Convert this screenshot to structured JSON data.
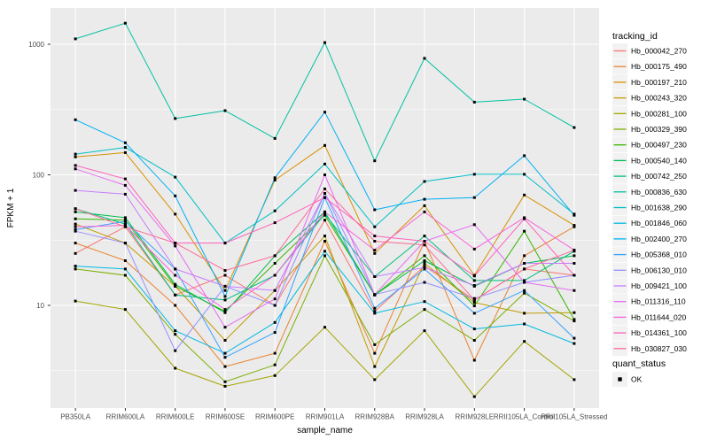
{
  "figure": {
    "y_axis_title": "FPKM + 1",
    "x_axis_title": "sample_name",
    "legend_title": "tracking_id",
    "status_legend_title": "quant_status",
    "status_ok_label": "OK"
  },
  "style": {
    "panel_bg": "#EBEBEB",
    "grid_color": "#FFFFFF",
    "tick_color": "#333333",
    "tick_label_color": "#4D4D4D",
    "text_color": "#000000",
    "marker_color": "#000000",
    "legend_key_bg": "#F2F2F2"
  },
  "chart_data": {
    "type": "line",
    "y_scale": "log10",
    "grid": "on",
    "legend_position": "right",
    "marker": "black-square",
    "x_categories": [
      "PB350LA",
      "RRIM600LA",
      "RRIM600LE",
      "RRIM600SE",
      "RRIM600PE",
      "RRIM901LA",
      "RRIM928BA",
      "RRIM928LA",
      "RRIM928LE",
      "RRII105LA_Control",
      "RRII105LA_Stressed"
    ],
    "y_ticks": [
      10,
      100,
      1000
    ],
    "y_minor_ticks": [
      3.162,
      31.62,
      316.2
    ],
    "ylim_approx": [
      1.7,
      1900
    ],
    "series": [
      {
        "name": "Hb_000042_270",
        "color": "#F8766D",
        "values": [
          25,
          40,
          12,
          17,
          10,
          45,
          9,
          20,
          11,
          19,
          17
        ]
      },
      {
        "name": "Hb_000175_490",
        "color": "#EA8331",
        "values": [
          30,
          22,
          10,
          3.4,
          4.3,
          31,
          4.3,
          31,
          3.8,
          24,
          40
        ]
      },
      {
        "name": "Hb_000197_210",
        "color": "#D89000",
        "values": [
          137,
          148,
          50,
          13,
          91,
          168,
          25,
          58,
          17,
          70,
          41
        ]
      },
      {
        "name": "Hb_000243_320",
        "color": "#C09B00",
        "values": [
          42,
          30,
          14,
          5.4,
          13,
          34,
          3.4,
          21,
          10.5,
          8.7,
          8.8
        ]
      },
      {
        "name": "Hb_000281_100",
        "color": "#A3A500",
        "values": [
          10.8,
          9.3,
          3.3,
          2.4,
          2.9,
          6.8,
          2.7,
          6.4,
          2.0,
          5.3,
          2.7
        ]
      },
      {
        "name": "Hb_000329_390",
        "color": "#7CAE00",
        "values": [
          19,
          17,
          6.0,
          2.6,
          3.5,
          24,
          5.0,
          9.3,
          5.4,
          12.4,
          7.6
        ]
      },
      {
        "name": "Hb_000497_230",
        "color": "#39B600",
        "values": [
          46,
          45,
          14,
          9.0,
          21,
          49,
          12,
          24,
          9.9,
          37,
          7.8
        ]
      },
      {
        "name": "Hb_000540_140",
        "color": "#00BB4E",
        "values": [
          52,
          47,
          14.5,
          8.8,
          24,
          52,
          12,
          22,
          14,
          21,
          24
        ]
      },
      {
        "name": "Hb_000742_250",
        "color": "#00BF7D",
        "values": [
          55,
          42,
          12,
          11,
          17,
          50,
          16.6,
          34,
          15.5,
          15.5,
          26
        ]
      },
      {
        "name": "Hb_000836_630",
        "color": "#00C1A3",
        "values": [
          1100,
          1450,
          270,
          310,
          190,
          1030,
          128,
          780,
          360,
          380,
          230
        ]
      },
      {
        "name": "Hb_001638_290",
        "color": "#00BFC4",
        "values": [
          144,
          162,
          96,
          30,
          53,
          121,
          40,
          89,
          101,
          101,
          50
        ]
      },
      {
        "name": "Hb_001846_060",
        "color": "#00BAE0",
        "values": [
          20,
          19,
          6.4,
          4.3,
          7.4,
          26,
          8.7,
          10.7,
          6.6,
          7.2,
          5.1
        ]
      },
      {
        "name": "Hb_002400_270",
        "color": "#00B0F6",
        "values": [
          264,
          176,
          69,
          11.7,
          95,
          302,
          54,
          65,
          67,
          140,
          49
        ]
      },
      {
        "name": "Hb_005368_010",
        "color": "#35A2FF",
        "values": [
          38,
          44,
          19,
          4.0,
          6.2,
          67,
          9.5,
          19,
          8.7,
          13,
          5.6
        ]
      },
      {
        "name": "Hb_006130_010",
        "color": "#9590FF",
        "values": [
          37,
          30,
          4.5,
          14,
          10,
          72,
          12.1,
          15,
          11.3,
          15,
          17
        ]
      },
      {
        "name": "Hb_009421_100",
        "color": "#C77CFF",
        "values": [
          76,
          71,
          19,
          14,
          13,
          72,
          16.6,
          19.5,
          14.2,
          21,
          21
        ]
      },
      {
        "name": "Hb_011316_110",
        "color": "#E76BF3",
        "values": [
          111,
          83,
          28.5,
          6.8,
          11.2,
          100,
          12.1,
          31,
          41.5,
          15,
          13
        ]
      },
      {
        "name": "Hb_011644_020",
        "color": "#FA62DB",
        "values": [
          40,
          41,
          17,
          9.3,
          17,
          52,
          26.5,
          52,
          27,
          47,
          26.5
        ]
      },
      {
        "name": "Hb_014361_100",
        "color": "#FF62BC",
        "values": [
          118,
          93,
          30,
          30,
          43,
          67,
          34,
          31,
          16.8,
          46,
          17
        ]
      },
      {
        "name": "Hb_030827_030",
        "color": "#FF6A98",
        "values": [
          55,
          40,
          30,
          18.5,
          24,
          78,
          31,
          29,
          11,
          19,
          26.5
        ]
      }
    ]
  }
}
